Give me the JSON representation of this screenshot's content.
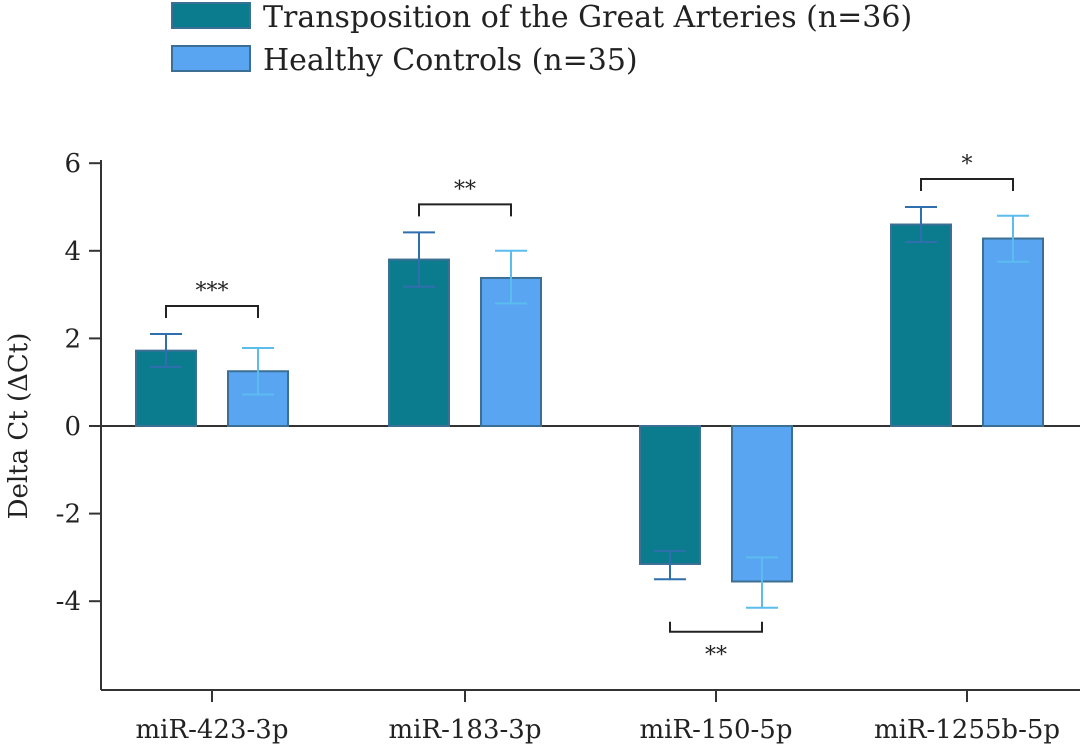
{
  "chart_data": {
    "type": "bar",
    "title": "",
    "xlabel": "",
    "ylabel": "Delta Ct (ΔCt)",
    "ylim": [
      -6,
      6
    ],
    "yticks": [
      6,
      4,
      2,
      0,
      -2,
      -4
    ],
    "categories": [
      "miR-423-3p",
      "miR-183-3p",
      "miR-150-5p",
      "miR-1255b-5p"
    ],
    "series": [
      {
        "name": "Transposition of the Great Arteries (n=36)",
        "color": "#0b7c8e",
        "error_color": "#2f6fae",
        "values": [
          1.72,
          3.8,
          -3.15,
          4.6
        ],
        "err_low": [
          1.35,
          3.18,
          -3.5,
          4.2
        ],
        "err_high": [
          2.1,
          4.42,
          -2.85,
          5.0
        ]
      },
      {
        "name": "Healthy Controls (n=35)",
        "color": "#5aa5f2",
        "error_color": "#5bbcee",
        "values": [
          1.25,
          3.38,
          -3.55,
          4.28
        ],
        "err_low": [
          0.72,
          2.8,
          -4.15,
          3.75
        ],
        "err_high": [
          1.78,
          4.0,
          -3.0,
          4.8
        ]
      }
    ],
    "significance": [
      {
        "category": "miR-423-3p",
        "label": "***",
        "position": "above"
      },
      {
        "category": "miR-183-3p",
        "label": "**",
        "position": "above"
      },
      {
        "category": "miR-150-5p",
        "label": "**",
        "position": "below"
      },
      {
        "category": "miR-1255b-5p",
        "label": "*",
        "position": "above"
      }
    ],
    "legend_position": "top-left"
  }
}
